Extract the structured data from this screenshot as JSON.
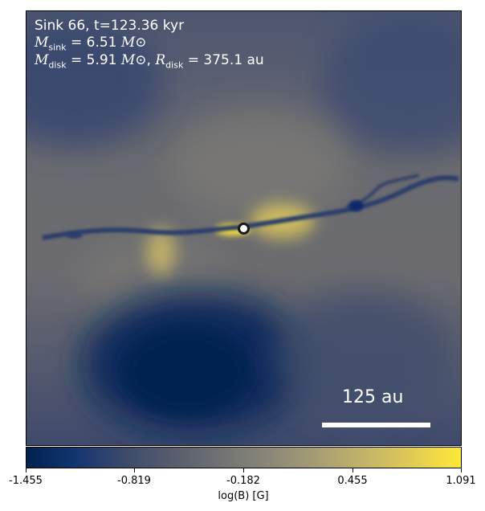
{
  "annotation": {
    "line1": "Sink 66, t=123.36 kyr",
    "mass_sink_value": "6.51",
    "mass_disk_value": "5.91",
    "radius_disk_value": "375.1",
    "unit_au": "au",
    "symbol_msun": "M⊙"
  },
  "scale_bar": {
    "label": "125 au"
  },
  "colorbar": {
    "label": "log(B) [G]",
    "ticks": [
      "-1.455",
      "-0.819",
      "-0.182",
      "0.455",
      "1.091"
    ],
    "range": [
      -1.455,
      1.091
    ],
    "colormap": "cividis"
  },
  "colors": {
    "background_field": "#5e6473",
    "low": "#00224e",
    "high": "#fee838",
    "sink_marker": "#ffffff"
  }
}
